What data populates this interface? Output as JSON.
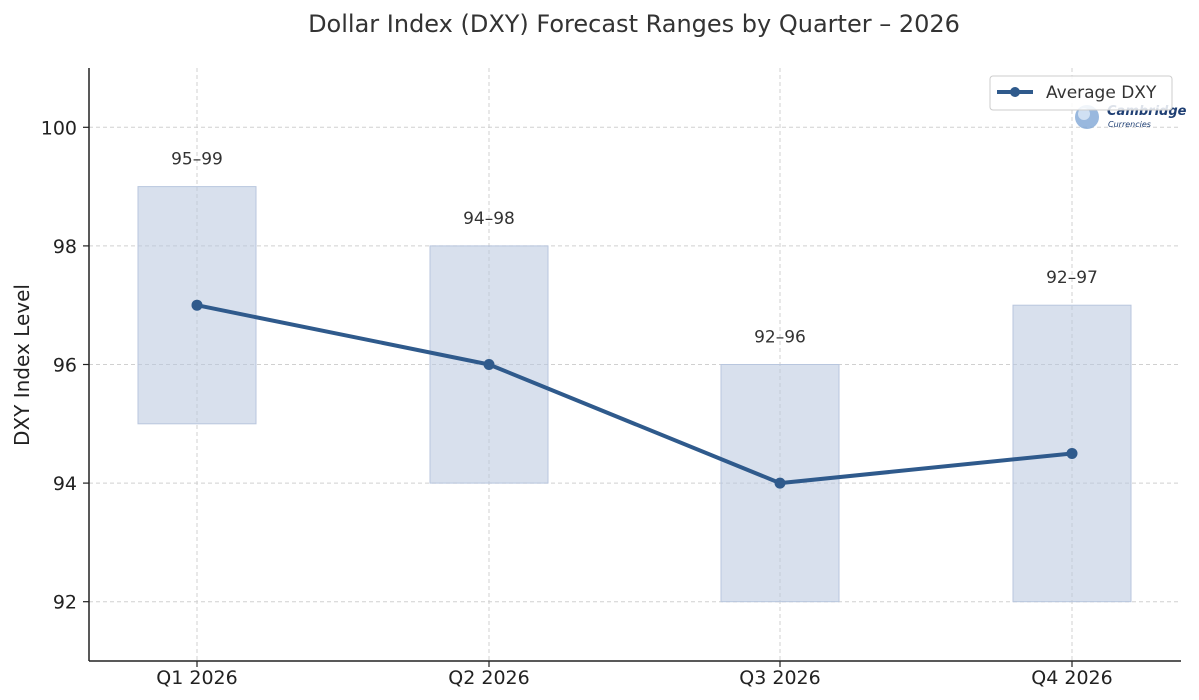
{
  "chart_data": {
    "type": "line",
    "title": "Dollar Index (DXY) Forecast Ranges by Quarter – 2026",
    "xlabel": "",
    "ylabel": "DXY Index Level",
    "categories": [
      "Q1 2026",
      "Q2 2026",
      "Q3 2026",
      "Q4 2026"
    ],
    "ylim": [
      91,
      101
    ],
    "yticks": [
      92,
      94,
      96,
      98,
      100
    ],
    "grid": true,
    "legend_position": "top-right",
    "series": [
      {
        "name": "Average DXY",
        "values": [
          97,
          96,
          94,
          94.5
        ],
        "color": "#2f5a8c"
      }
    ],
    "ranges": [
      {
        "low": 95,
        "high": 99,
        "label": "95–99"
      },
      {
        "low": 94,
        "high": 98,
        "label": "94–98"
      },
      {
        "low": 92,
        "high": 96,
        "label": "92–96"
      },
      {
        "low": 92,
        "high": 97,
        "label": "92–97"
      }
    ],
    "range_color": "#b8c6de"
  },
  "watermark": {
    "line1": "Cambridge",
    "line2": "Currencies"
  }
}
